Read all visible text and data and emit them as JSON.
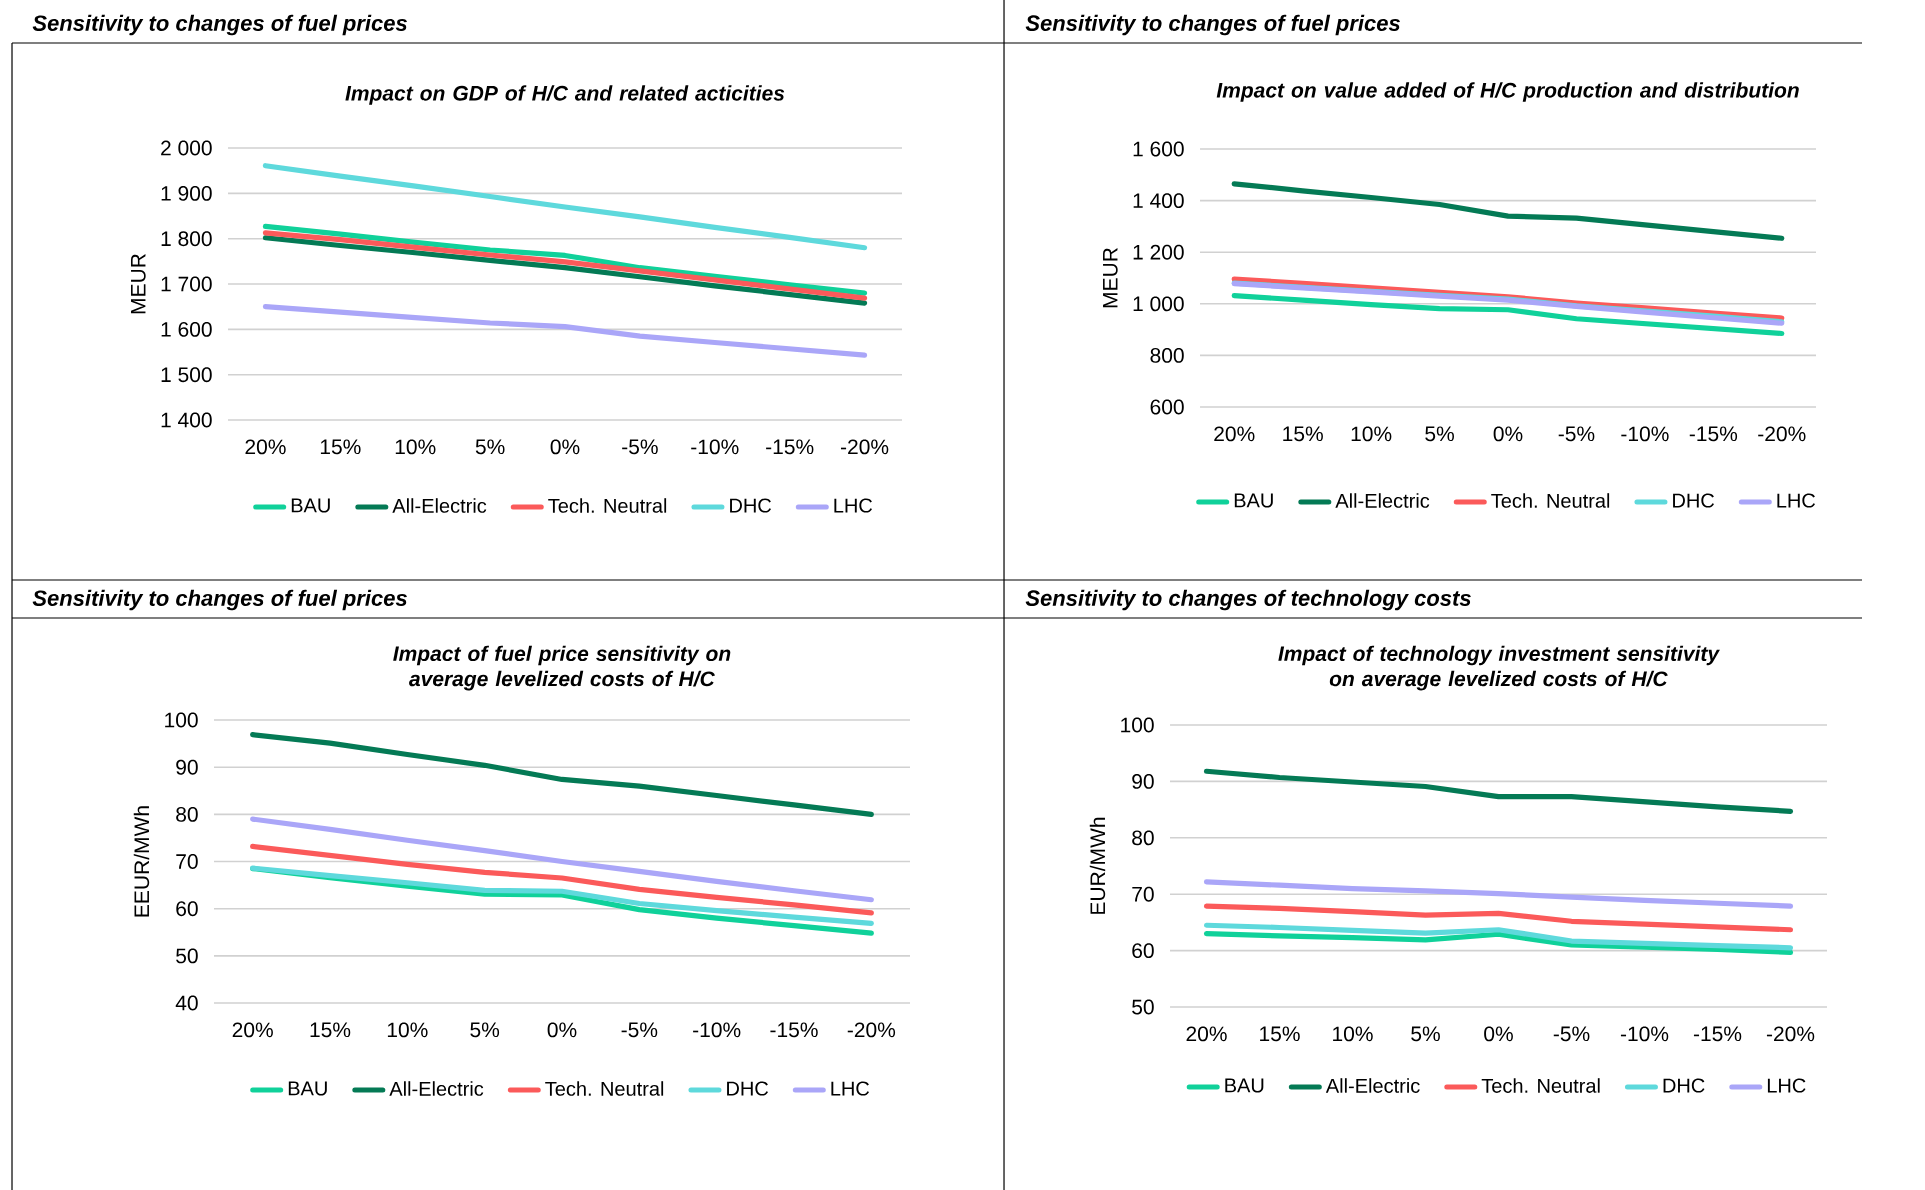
{
  "chart_data": [
    {
      "type": "line",
      "subtitle": "Sensitivity to changes of fuel prices",
      "title": "*Impact on GDP of H/C and related acticities*",
      "ylabel": "MEUR",
      "categories": [
        "20%",
        "15%",
        "10%",
        "5%",
        "0%",
        "-5%",
        "-10%",
        "-15%",
        "-20%"
      ],
      "ylim": [
        1400,
        2000
      ],
      "yticks": [
        {
          "value": 1400,
          "label": "1 400"
        },
        {
          "value": 1500,
          "label": "1 500"
        },
        {
          "value": 1600,
          "label": "1 600"
        },
        {
          "value": 1700,
          "label": "1 700"
        },
        {
          "value": 1800,
          "label": "1 800"
        },
        {
          "value": 1900,
          "label": "1 900"
        },
        {
          "value": 2000,
          "label": "2 000"
        }
      ],
      "grid": "y",
      "legend": "bottom",
      "series": [
        {
          "name": "BAU",
          "color": "#10d19a",
          "values": [
            1827,
            1810,
            1792,
            1775,
            1763,
            1736,
            1717,
            1698,
            1680
          ]
        },
        {
          "name": "All-Electric",
          "color": "#047a55",
          "values": [
            1802,
            1785,
            1769,
            1752,
            1736,
            1716,
            1696,
            1677,
            1658
          ]
        },
        {
          "name": "Tech. Neutral",
          "color": "#fb5a5a",
          "values": [
            1813,
            1798,
            1781,
            1764,
            1749,
            1729,
            1709,
            1689,
            1669
          ]
        },
        {
          "name": "DHC",
          "color": "#5ed9dc",
          "values": [
            1961,
            1938,
            1916,
            1893,
            1870,
            1848,
            1825,
            1803,
            1780
          ]
        },
        {
          "name": "LHC",
          "color": "#aaa6f8",
          "values": [
            1650,
            1638,
            1626,
            1614,
            1606,
            1585,
            1571,
            1557,
            1543
          ]
        }
      ]
    },
    {
      "type": "line",
      "subtitle": "Sensitivity to changes of fuel prices",
      "title": "*Impact on value added of H/C production and distribution*",
      "ylabel": "MEUR",
      "categories": [
        "20%",
        "15%",
        "10%",
        "5%",
        "0%",
        "-5%",
        "-10%",
        "-15%",
        "-20%"
      ],
      "ylim": [
        600,
        1600
      ],
      "yticks": [
        600,
        800,
        {
          "value": 1000,
          "label": "1 000"
        },
        {
          "value": 1200,
          "label": "1 200"
        },
        {
          "value": 1400,
          "label": "1 400"
        },
        {
          "value": 1600,
          "label": "1 600"
        }
      ],
      "grid": "y",
      "legend": "bottom",
      "series": [
        {
          "name": "BAU",
          "color": "#10d19a",
          "values": [
            1032,
            1014,
            997,
            981,
            977,
            942,
            923,
            904,
            885
          ]
        },
        {
          "name": "All-Electric",
          "color": "#047a55",
          "values": [
            1465,
            1438,
            1412,
            1385,
            1340,
            1332,
            1306,
            1280,
            1254
          ]
        },
        {
          "name": "Tech. Neutral",
          "color": "#fb5a5a",
          "values": [
            1096,
            1079,
            1062,
            1044,
            1027,
            1003,
            984,
            964,
            945
          ]
        },
        {
          "name": "DHC",
          "color": "#5ed9dc",
          "values": [
            1080,
            1064,
            1048,
            1033,
            1018,
            992,
            972,
            952,
            930
          ]
        },
        {
          "name": "LHC",
          "color": "#aaa6f8",
          "values": [
            1078,
            1062,
            1046,
            1030,
            1014,
            990,
            968,
            946,
            925
          ]
        }
      ]
    },
    {
      "type": "line",
      "subtitle": "Sensitivity to changes of fuel prices",
      "title": "*Impact of fuel price sensitivity on average levelized costs of H/C*",
      "ylabel": "EEUR/MWh",
      "categories": [
        "20%",
        "15%",
        "10%",
        "5%",
        "0%",
        "-5%",
        "-10%",
        "-15%",
        "-20%"
      ],
      "ylim": [
        40,
        100
      ],
      "yticks": [
        40,
        50,
        60,
        70,
        80,
        90,
        100
      ],
      "grid": "y",
      "legend": "bottom",
      "series": [
        {
          "name": "BAU",
          "color": "#10d19a",
          "values": [
            68.5,
            66.6,
            64.8,
            63.1,
            62.9,
            59.8,
            58,
            56.4,
            54.8
          ]
        },
        {
          "name": "All-Electric",
          "color": "#047a55",
          "values": [
            96.9,
            95.1,
            92.7,
            90.4,
            87.4,
            86,
            84,
            82,
            80
          ]
        },
        {
          "name": "Tech. Neutral",
          "color": "#fb5a5a",
          "values": [
            73.2,
            71.3,
            69.4,
            67.7,
            66.5,
            64.1,
            62.4,
            60.8,
            59.1
          ]
        },
        {
          "name": "DHC",
          "color": "#5ed9dc",
          "values": [
            68.6,
            67,
            65.5,
            63.9,
            63.7,
            61.1,
            59.6,
            58.2,
            56.9
          ]
        },
        {
          "name": "LHC",
          "color": "#aaa6f8",
          "values": [
            79,
            76.8,
            74.5,
            72.3,
            70,
            67.9,
            65.8,
            63.8,
            61.9
          ]
        }
      ]
    },
    {
      "type": "line",
      "subtitle": "Sensitivity to changes of technology costs",
      "title": "*Impact of technology investment sensitivity on average levelized costs of H/C*",
      "ylabel": "EUR/MWh",
      "categories": [
        "20%",
        "15%",
        "10%",
        "5%",
        "0%",
        "-5%",
        "-10%",
        "-15%",
        "-20%"
      ],
      "ylim": [
        50,
        100
      ],
      "yticks": [
        50,
        60,
        70,
        80,
        90,
        100
      ],
      "grid": "y",
      "legend": "bottom",
      "series": [
        {
          "name": "BAU",
          "color": "#10d19a",
          "values": [
            63,
            62.6,
            62.3,
            61.9,
            62.9,
            61,
            60.6,
            60.2,
            59.7
          ]
        },
        {
          "name": "All-Electric",
          "color": "#047a55",
          "values": [
            91.8,
            90.7,
            89.9,
            89.1,
            87.3,
            87.3,
            86.4,
            85.5,
            84.7
          ]
        },
        {
          "name": "Tech. Neutral",
          "color": "#fb5a5a",
          "values": [
            67.9,
            67.5,
            66.9,
            66.3,
            66.6,
            65.2,
            64.7,
            64.2,
            63.7
          ]
        },
        {
          "name": "DHC",
          "color": "#5ed9dc",
          "values": [
            64.5,
            64.1,
            63.6,
            63.1,
            63.7,
            61.7,
            61.3,
            60.9,
            60.5
          ]
        },
        {
          "name": "LHC",
          "color": "#aaa6f8",
          "values": [
            72.2,
            71.6,
            71,
            70.6,
            70.1,
            69.5,
            68.9,
            68.4,
            67.9
          ]
        }
      ]
    }
  ]
}
